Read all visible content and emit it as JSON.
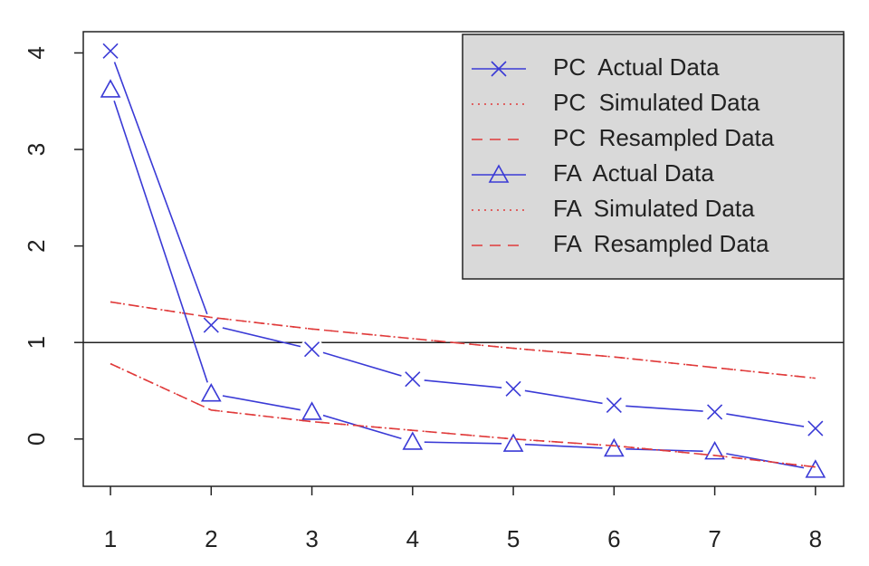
{
  "chart_data": {
    "type": "line",
    "x": [
      1,
      2,
      3,
      4,
      5,
      6,
      7,
      8
    ],
    "xlim": [
      0.73,
      8.28
    ],
    "xticks": [
      1,
      2,
      3,
      4,
      5,
      6,
      7,
      8
    ],
    "ylim": [
      -0.49,
      4.22
    ],
    "yticks": [
      0,
      1,
      2,
      3,
      4
    ],
    "hline": 1,
    "legend_position": "top-right",
    "legend_text_color": "#2e962e",
    "series": [
      {
        "name": "PC  Actual Data",
        "color": "#3a3ad6",
        "style": "solid",
        "marker": "x",
        "values": [
          4.02,
          1.18,
          0.93,
          0.62,
          0.52,
          0.35,
          0.28,
          0.11
        ]
      },
      {
        "name": "PC  Simulated Data",
        "color": "#e03a3a",
        "style": "dotted",
        "marker": null,
        "values": [
          1.42,
          1.26,
          1.14,
          1.04,
          0.94,
          0.85,
          0.74,
          0.63
        ]
      },
      {
        "name": "PC  Resampled Data",
        "color": "#e03a3a",
        "style": "dashed",
        "marker": null,
        "values": [
          1.42,
          1.26,
          1.14,
          1.04,
          0.94,
          0.85,
          0.74,
          0.63
        ]
      },
      {
        "name": "FA  Actual Data",
        "color": "#3a3ad6",
        "style": "solid",
        "marker": "triangle",
        "values": [
          3.62,
          0.47,
          0.28,
          -0.03,
          -0.05,
          -0.1,
          -0.13,
          -0.32
        ]
      },
      {
        "name": "FA  Simulated Data",
        "color": "#e03a3a",
        "style": "dotted",
        "marker": null,
        "values": [
          0.78,
          0.3,
          0.18,
          0.09,
          0.0,
          -0.07,
          -0.17,
          -0.29
        ]
      },
      {
        "name": "FA  Resampled Data",
        "color": "#e03a3a",
        "style": "dashed",
        "marker": null,
        "values": [
          0.78,
          0.3,
          0.18,
          0.09,
          0.0,
          -0.07,
          -0.17,
          -0.29
        ]
      }
    ]
  }
}
